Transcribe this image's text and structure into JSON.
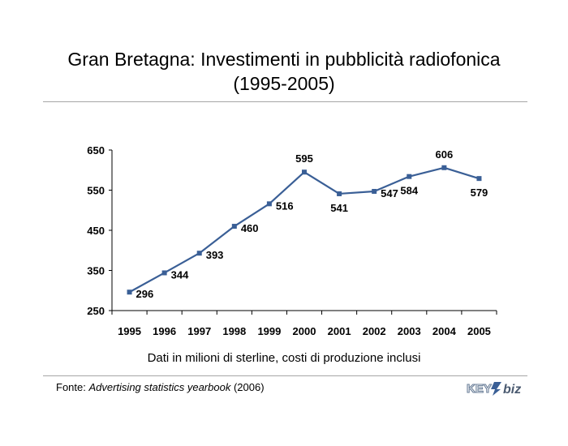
{
  "header": {
    "title_line1": "Gran Bretagna: Investimenti in pubblicità radiofonica",
    "title_line2": "(1995-2005)"
  },
  "note": "Dati in milioni di sterline, costi di produzione inclusi",
  "source": {
    "prefix": "Fonte: ",
    "publication": "Advertising statistics yearbook",
    "suffix": " (2006)"
  },
  "logo": {
    "text_key": "KEY",
    "text_biz": "biz",
    "icon": "key4biz-logo"
  },
  "chart_data": {
    "type": "line",
    "categories": [
      "1995",
      "1996",
      "1997",
      "1998",
      "1999",
      "2000",
      "2001",
      "2002",
      "2003",
      "2004",
      "2005"
    ],
    "series": [
      {
        "name": "",
        "values": [
          296,
          344,
          393,
          460,
          516,
          595,
          541,
          547,
          584,
          606,
          579
        ],
        "color": "#3a5f96"
      }
    ],
    "yticks": [
      250,
      350,
      450,
      550,
      650
    ],
    "ylim": [
      250,
      650
    ],
    "xlabel": "",
    "ylabel": "",
    "grid": false,
    "legend": "none"
  }
}
